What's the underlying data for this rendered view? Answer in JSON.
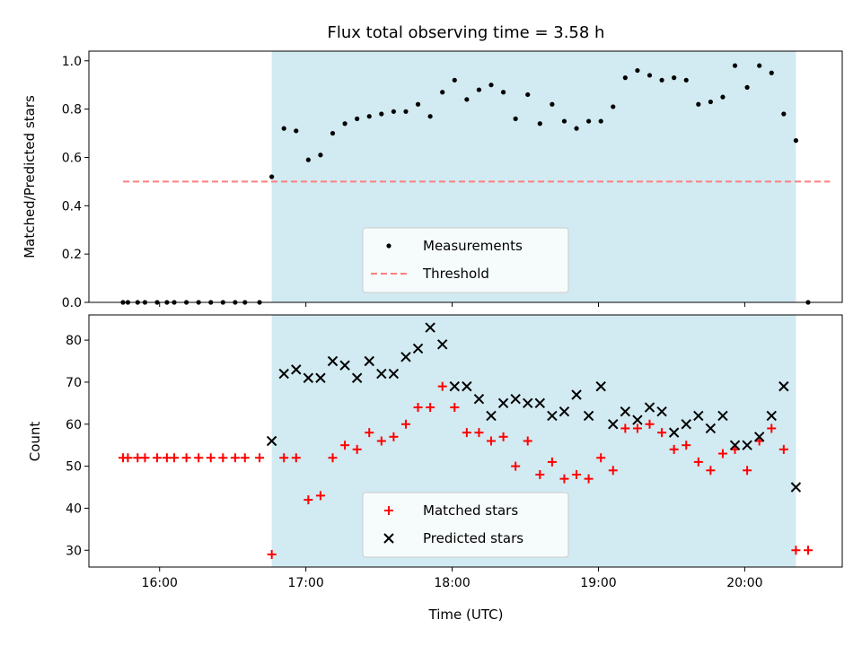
{
  "chart_data": {
    "title": "Flux total observing time = 3.58 h",
    "xlabel": "Time (UTC)",
    "x_ticks": [
      "16:00",
      "17:00",
      "18:00",
      "19:00",
      "20:00"
    ],
    "xlim": [
      "15:31",
      "20:40"
    ],
    "shaded_interval": [
      "16:46",
      "20:21"
    ],
    "shade_color": "#add8e6",
    "panels": [
      {
        "type": "scatter",
        "ylabel": "Matched/Predicted stars",
        "ylim": [
          0,
          1.04
        ],
        "y_ticks": [
          "0.0",
          "0.2",
          "0.4",
          "0.6",
          "0.8",
          "1.0"
        ],
        "legend_position": "lower center",
        "threshold": {
          "name": "Threshold",
          "value": 0.5,
          "x_range": [
            "15:45",
            "20:35"
          ],
          "color": "#ff7f7f"
        },
        "series": [
          {
            "name": "Measurements",
            "color": "#000000",
            "marker": "dot",
            "points": [
              [
                "15:45",
                0.0
              ],
              [
                "15:47",
                0.0
              ],
              [
                "15:51",
                0.0
              ],
              [
                "15:54",
                0.0
              ],
              [
                "15:59",
                0.0
              ],
              [
                "16:03",
                0.0
              ],
              [
                "16:06",
                0.0
              ],
              [
                "16:11",
                0.0
              ],
              [
                "16:16",
                0.0
              ],
              [
                "16:21",
                0.0
              ],
              [
                "16:26",
                0.0
              ],
              [
                "16:31",
                0.0
              ],
              [
                "16:35",
                0.0
              ],
              [
                "16:41",
                0.0
              ],
              [
                "16:46",
                0.52
              ],
              [
                "16:51",
                0.72
              ],
              [
                "16:56",
                0.71
              ],
              [
                "17:01",
                0.59
              ],
              [
                "17:06",
                0.61
              ],
              [
                "17:11",
                0.7
              ],
              [
                "17:16",
                0.74
              ],
              [
                "17:21",
                0.76
              ],
              [
                "17:26",
                0.77
              ],
              [
                "17:31",
                0.78
              ],
              [
                "17:36",
                0.79
              ],
              [
                "17:41",
                0.79
              ],
              [
                "17:46",
                0.82
              ],
              [
                "17:51",
                0.77
              ],
              [
                "17:56",
                0.87
              ],
              [
                "18:01",
                0.92
              ],
              [
                "18:06",
                0.84
              ],
              [
                "18:11",
                0.88
              ],
              [
                "18:16",
                0.9
              ],
              [
                "18:21",
                0.87
              ],
              [
                "18:26",
                0.76
              ],
              [
                "18:31",
                0.86
              ],
              [
                "18:36",
                0.74
              ],
              [
                "18:41",
                0.82
              ],
              [
                "18:46",
                0.75
              ],
              [
                "18:51",
                0.72
              ],
              [
                "18:56",
                0.75
              ],
              [
                "19:01",
                0.75
              ],
              [
                "19:06",
                0.81
              ],
              [
                "19:11",
                0.93
              ],
              [
                "19:16",
                0.96
              ],
              [
                "19:21",
                0.94
              ],
              [
                "19:26",
                0.92
              ],
              [
                "19:31",
                0.93
              ],
              [
                "19:36",
                0.92
              ],
              [
                "19:41",
                0.82
              ],
              [
                "19:46",
                0.83
              ],
              [
                "19:51",
                0.85
              ],
              [
                "19:56",
                0.98
              ],
              [
                "20:01",
                0.89
              ],
              [
                "20:06",
                0.98
              ],
              [
                "20:11",
                0.95
              ],
              [
                "20:16",
                0.78
              ],
              [
                "20:21",
                0.67
              ],
              [
                "20:26",
                0.0
              ]
            ]
          }
        ]
      },
      {
        "type": "scatter",
        "ylabel": "Count",
        "ylim": [
          26,
          86
        ],
        "y_ticks": [
          "30",
          "40",
          "50",
          "60",
          "70",
          "80"
        ],
        "legend_position": "lower center",
        "series": [
          {
            "name": "Matched stars",
            "color": "#ff0000",
            "marker": "plus",
            "points": [
              [
                "15:45",
                52
              ],
              [
                "15:47",
                52
              ],
              [
                "15:51",
                52
              ],
              [
                "15:54",
                52
              ],
              [
                "15:59",
                52
              ],
              [
                "16:03",
                52
              ],
              [
                "16:06",
                52
              ],
              [
                "16:11",
                52
              ],
              [
                "16:16",
                52
              ],
              [
                "16:21",
                52
              ],
              [
                "16:26",
                52
              ],
              [
                "16:31",
                52
              ],
              [
                "16:35",
                52
              ],
              [
                "16:41",
                52
              ],
              [
                "16:46",
                29
              ],
              [
                "16:51",
                52
              ],
              [
                "16:56",
                52
              ],
              [
                "17:01",
                42
              ],
              [
                "17:06",
                43
              ],
              [
                "17:11",
                52
              ],
              [
                "17:16",
                55
              ],
              [
                "17:21",
                54
              ],
              [
                "17:26",
                58
              ],
              [
                "17:31",
                56
              ],
              [
                "17:36",
                57
              ],
              [
                "17:41",
                60
              ],
              [
                "17:46",
                64
              ],
              [
                "17:51",
                64
              ],
              [
                "17:56",
                69
              ],
              [
                "18:01",
                64
              ],
              [
                "18:06",
                58
              ],
              [
                "18:11",
                58
              ],
              [
                "18:16",
                56
              ],
              [
                "18:21",
                57
              ],
              [
                "18:26",
                50
              ],
              [
                "18:31",
                56
              ],
              [
                "18:36",
                48
              ],
              [
                "18:41",
                51
              ],
              [
                "18:46",
                47
              ],
              [
                "18:51",
                48
              ],
              [
                "18:56",
                47
              ],
              [
                "19:01",
                52
              ],
              [
                "19:06",
                49
              ],
              [
                "19:11",
                59
              ],
              [
                "19:16",
                59
              ],
              [
                "19:21",
                60
              ],
              [
                "19:26",
                58
              ],
              [
                "19:31",
                54
              ],
              [
                "19:36",
                55
              ],
              [
                "19:41",
                51
              ],
              [
                "19:46",
                49
              ],
              [
                "19:51",
                53
              ],
              [
                "19:56",
                54
              ],
              [
                "20:01",
                49
              ],
              [
                "20:06",
                56
              ],
              [
                "20:11",
                59
              ],
              [
                "20:16",
                54
              ],
              [
                "20:21",
                30
              ],
              [
                "20:26",
                30
              ]
            ]
          },
          {
            "name": "Predicted stars",
            "color": "#000000",
            "marker": "x",
            "points": [
              [
                "16:46",
                56
              ],
              [
                "16:51",
                72
              ],
              [
                "16:56",
                73
              ],
              [
                "17:01",
                71
              ],
              [
                "17:06",
                71
              ],
              [
                "17:11",
                75
              ],
              [
                "17:16",
                74
              ],
              [
                "17:21",
                71
              ],
              [
                "17:26",
                75
              ],
              [
                "17:31",
                72
              ],
              [
                "17:36",
                72
              ],
              [
                "17:41",
                76
              ],
              [
                "17:46",
                78
              ],
              [
                "17:51",
                83
              ],
              [
                "17:56",
                79
              ],
              [
                "18:01",
                69
              ],
              [
                "18:06",
                69
              ],
              [
                "18:11",
                66
              ],
              [
                "18:16",
                62
              ],
              [
                "18:21",
                65
              ],
              [
                "18:26",
                66
              ],
              [
                "18:31",
                65
              ],
              [
                "18:36",
                65
              ],
              [
                "18:41",
                62
              ],
              [
                "18:46",
                63
              ],
              [
                "18:51",
                67
              ],
              [
                "18:56",
                62
              ],
              [
                "19:01",
                69
              ],
              [
                "19:06",
                60
              ],
              [
                "19:11",
                63
              ],
              [
                "19:16",
                61
              ],
              [
                "19:21",
                64
              ],
              [
                "19:26",
                63
              ],
              [
                "19:31",
                58
              ],
              [
                "19:36",
                60
              ],
              [
                "19:41",
                62
              ],
              [
                "19:46",
                59
              ],
              [
                "19:51",
                62
              ],
              [
                "19:56",
                55
              ],
              [
                "20:01",
                55
              ],
              [
                "20:06",
                57
              ],
              [
                "20:11",
                62
              ],
              [
                "20:16",
                69
              ],
              [
                "20:21",
                45
              ]
            ]
          }
        ]
      }
    ]
  }
}
